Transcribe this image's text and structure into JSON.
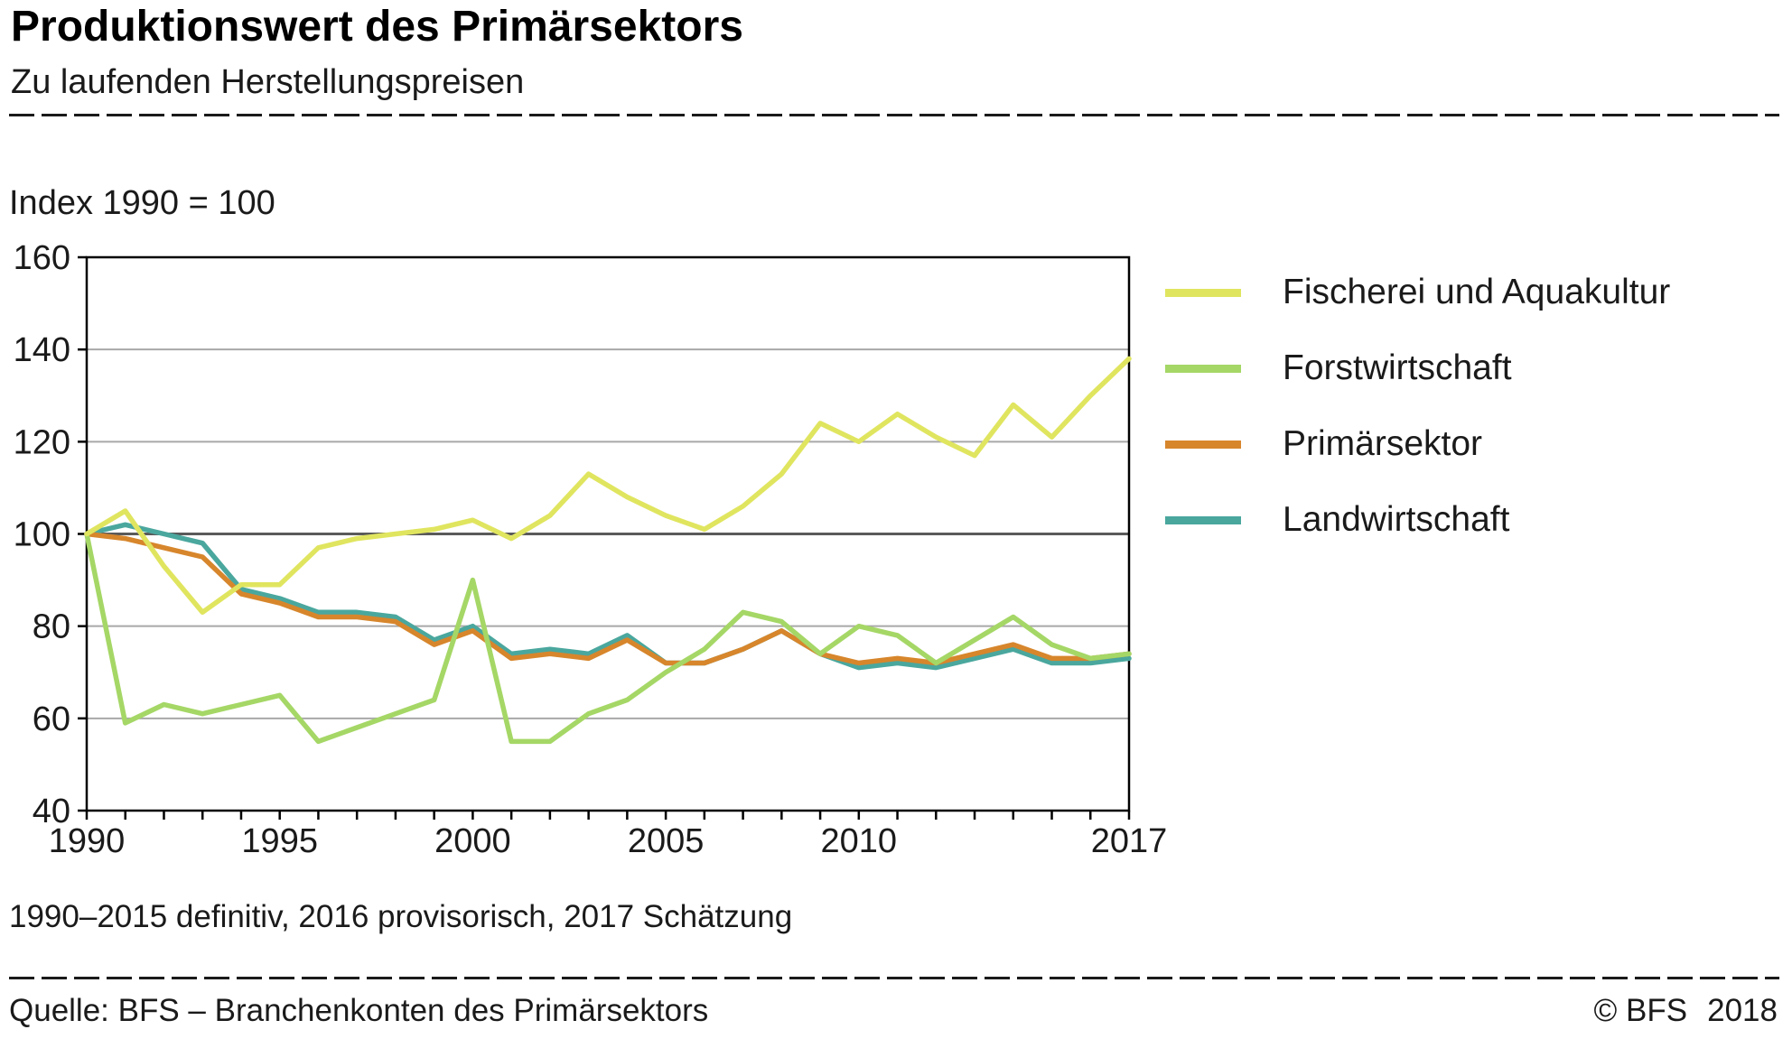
{
  "chart_data": {
    "type": "line",
    "title": "Produktionswert des Primärsektors",
    "subtitle": "Zu laufenden Herstellungspreisen",
    "index_note": "Index 1990 = 100",
    "note": "1990–2015 definitiv, 2016 provisorisch, 2017 Schätzung",
    "grid": true,
    "legend_position": "right",
    "xlim": [
      1990,
      2017
    ],
    "ylim": [
      40,
      160
    ],
    "y_ticks": [
      40,
      60,
      80,
      100,
      120,
      140,
      160
    ],
    "emphasized_gridline": 100,
    "x": [
      1990,
      1991,
      1992,
      1993,
      1994,
      1995,
      1996,
      1997,
      1998,
      1999,
      2000,
      2001,
      2002,
      2003,
      2004,
      2005,
      2006,
      2007,
      2008,
      2009,
      2010,
      2011,
      2012,
      2013,
      2014,
      2015,
      2016,
      2017
    ],
    "x_tick_labels": [
      1990,
      1995,
      2000,
      2005,
      2010,
      2017
    ],
    "series": [
      {
        "name": "Fischerei und Aquakultur",
        "color": "#e0e55f",
        "values": [
          100,
          105,
          93,
          83,
          89,
          89,
          97,
          99,
          100,
          101,
          103,
          99,
          104,
          113,
          108,
          104,
          101,
          106,
          113,
          124,
          120,
          126,
          121,
          117,
          128,
          121,
          130,
          138
        ]
      },
      {
        "name": "Forstwirtschaft",
        "color": "#a5d766",
        "values": [
          100,
          59,
          63,
          61,
          63,
          65,
          55,
          58,
          61,
          64,
          90,
          55,
          55,
          61,
          64,
          70,
          75,
          83,
          81,
          74,
          80,
          78,
          72,
          77,
          82,
          76,
          73,
          74
        ]
      },
      {
        "name": "Primärsektor",
        "color": "#d7862c",
        "values": [
          100,
          99,
          97,
          95,
          87,
          85,
          82,
          82,
          81,
          76,
          79,
          73,
          74,
          73,
          77,
          72,
          72,
          75,
          79,
          74,
          72,
          73,
          72,
          74,
          76,
          73,
          73,
          74
        ]
      },
      {
        "name": "Landwirtschaft",
        "color": "#4aa79e",
        "values": [
          100,
          102,
          100,
          98,
          88,
          86,
          83,
          83,
          82,
          77,
          80,
          74,
          75,
          74,
          78,
          72,
          72,
          75,
          79,
          74,
          71,
          72,
          71,
          73,
          75,
          72,
          72,
          73
        ]
      }
    ],
    "style": {
      "grid_color": "#a8a8a8",
      "emphasized_grid_color": "#5a5a5a",
      "axis_color": "#000000"
    }
  },
  "footer": {
    "source": "Quelle: BFS – Branchenkonten des Primärsektors",
    "copyright": "© BFS",
    "year": "2018"
  }
}
